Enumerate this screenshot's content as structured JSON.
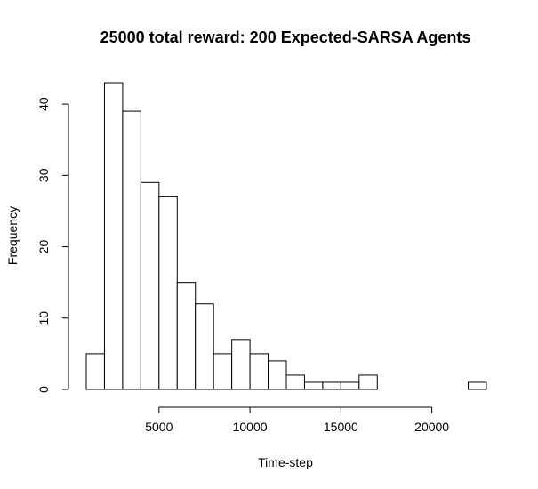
{
  "chart_data": {
    "type": "bar",
    "title": "25000 total reward: 200 Expected-SARSA Agents",
    "xlabel": "Time-step",
    "ylabel": "Frequency",
    "xlim": [
      1000,
      23000
    ],
    "ylim": [
      0,
      43
    ],
    "bin_width": 1000,
    "bins": [
      {
        "start": 1000,
        "end": 2000,
        "count": 5
      },
      {
        "start": 2000,
        "end": 3000,
        "count": 43
      },
      {
        "start": 3000,
        "end": 4000,
        "count": 39
      },
      {
        "start": 4000,
        "end": 5000,
        "count": 29
      },
      {
        "start": 5000,
        "end": 6000,
        "count": 27
      },
      {
        "start": 6000,
        "end": 7000,
        "count": 15
      },
      {
        "start": 7000,
        "end": 8000,
        "count": 12
      },
      {
        "start": 8000,
        "end": 9000,
        "count": 5
      },
      {
        "start": 9000,
        "end": 10000,
        "count": 7
      },
      {
        "start": 10000,
        "end": 11000,
        "count": 5
      },
      {
        "start": 11000,
        "end": 12000,
        "count": 4
      },
      {
        "start": 12000,
        "end": 13000,
        "count": 2
      },
      {
        "start": 13000,
        "end": 14000,
        "count": 1
      },
      {
        "start": 14000,
        "end": 15000,
        "count": 1
      },
      {
        "start": 15000,
        "end": 16000,
        "count": 1
      },
      {
        "start": 16000,
        "end": 17000,
        "count": 2
      },
      {
        "start": 17000,
        "end": 18000,
        "count": 0
      },
      {
        "start": 18000,
        "end": 19000,
        "count": 0
      },
      {
        "start": 19000,
        "end": 20000,
        "count": 0
      },
      {
        "start": 20000,
        "end": 21000,
        "count": 0
      },
      {
        "start": 21000,
        "end": 22000,
        "count": 0
      },
      {
        "start": 22000,
        "end": 23000,
        "count": 1
      }
    ],
    "x_ticks": [
      5000,
      10000,
      15000,
      20000
    ],
    "x_tick_labels": [
      "5000",
      "10000",
      "15000",
      "20000"
    ],
    "y_ticks": [
      0,
      10,
      20,
      30,
      40
    ],
    "y_tick_labels": [
      "0",
      "10",
      "20",
      "30",
      "40"
    ],
    "grid": false,
    "legend": "none"
  }
}
